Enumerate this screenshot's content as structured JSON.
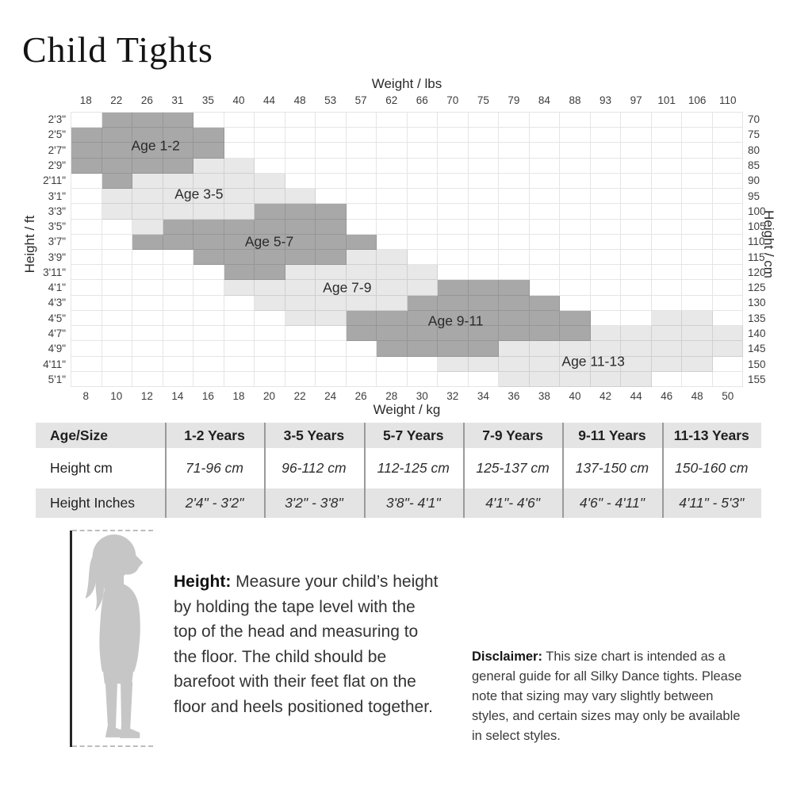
{
  "page": {
    "title": "Child Tights"
  },
  "chart_data": {
    "type": "heatmap",
    "title": "Child Tights size chart",
    "cols": 22,
    "top_axis": {
      "title": "Weight / lbs",
      "ticks": [
        "18",
        "22",
        "26",
        "31",
        "35",
        "40",
        "44",
        "48",
        "53",
        "57",
        "62",
        "66",
        "70",
        "75",
        "79",
        "84",
        "88",
        "93",
        "97",
        "101",
        "106",
        "110"
      ]
    },
    "bottom_axis": {
      "title": "Weight / kg",
      "ticks": [
        "8",
        "10",
        "12",
        "14",
        "16",
        "18",
        "20",
        "22",
        "24",
        "26",
        "28",
        "30",
        "32",
        "34",
        "36",
        "38",
        "40",
        "42",
        "44",
        "46",
        "48",
        "50"
      ]
    },
    "left_axis": {
      "title": "Height / ft"
    },
    "right_axis": {
      "title": "Height / cm"
    },
    "colors": {
      "dark_cell": "#a8a8a8",
      "light_cell": "#e8e8e8"
    },
    "rows": [
      {
        "ft": "2'3\"",
        "cm": "70",
        "dark": [
          [
            1,
            3
          ]
        ],
        "light": []
      },
      {
        "ft": "2'5\"",
        "cm": "75",
        "dark": [
          [
            0,
            4
          ]
        ],
        "light": []
      },
      {
        "ft": "2'7\"",
        "cm": "80",
        "dark": [
          [
            0,
            4
          ]
        ],
        "light": []
      },
      {
        "ft": "2'9\"",
        "cm": "85",
        "dark": [
          [
            0,
            3
          ]
        ],
        "light": [
          [
            4,
            5
          ]
        ]
      },
      {
        "ft": "2'11\"",
        "cm": "90",
        "dark": [
          [
            1,
            1
          ]
        ],
        "light": [
          [
            2,
            6
          ]
        ]
      },
      {
        "ft": "3'1\"",
        "cm": "95",
        "dark": [],
        "light": [
          [
            1,
            7
          ]
        ]
      },
      {
        "ft": "3'3\"",
        "cm": "100",
        "dark": [
          [
            6,
            8
          ]
        ],
        "light": [
          [
            1,
            5
          ]
        ]
      },
      {
        "ft": "3'5\"",
        "cm": "105",
        "dark": [
          [
            3,
            8
          ]
        ],
        "light": [
          [
            2,
            2
          ]
        ]
      },
      {
        "ft": "3'7\"",
        "cm": "110",
        "dark": [
          [
            2,
            9
          ]
        ],
        "light": []
      },
      {
        "ft": "3'9\"",
        "cm": "115",
        "dark": [
          [
            4,
            8
          ]
        ],
        "light": [
          [
            9,
            10
          ]
        ]
      },
      {
        "ft": "3'11\"",
        "cm": "120",
        "dark": [
          [
            5,
            6
          ]
        ],
        "light": [
          [
            7,
            11
          ]
        ]
      },
      {
        "ft": "4'1\"",
        "cm": "125",
        "dark": [
          [
            12,
            14
          ]
        ],
        "light": [
          [
            5,
            11
          ]
        ]
      },
      {
        "ft": "4'3\"",
        "cm": "130",
        "dark": [
          [
            11,
            15
          ]
        ],
        "light": [
          [
            6,
            10
          ]
        ]
      },
      {
        "ft": "4'5\"",
        "cm": "135",
        "dark": [
          [
            9,
            16
          ]
        ],
        "light": [
          [
            7,
            8
          ],
          [
            19,
            20
          ]
        ]
      },
      {
        "ft": "4'7\"",
        "cm": "140",
        "dark": [
          [
            9,
            16
          ]
        ],
        "light": [
          [
            17,
            21
          ]
        ]
      },
      {
        "ft": "4'9\"",
        "cm": "145",
        "dark": [
          [
            10,
            13
          ]
        ],
        "light": [
          [
            14,
            21
          ]
        ]
      },
      {
        "ft": "4'11\"",
        "cm": "150",
        "dark": [],
        "light": [
          [
            12,
            20
          ]
        ]
      },
      {
        "ft": "5'1\"",
        "cm": "155",
        "dark": [],
        "light": [
          [
            14,
            18
          ]
        ]
      }
    ],
    "regions": [
      {
        "label": "Age 1-2",
        "x": 2.78,
        "y": 2.25
      },
      {
        "label": "Age 3-5",
        "x": 4.2,
        "y": 5.4
      },
      {
        "label": "Age 5-7",
        "x": 6.5,
        "y": 8.5
      },
      {
        "label": "Age 7-9",
        "x": 9.05,
        "y": 11.5
      },
      {
        "label": "Age 9-11",
        "x": 12.6,
        "y": 13.7
      },
      {
        "label": "Age 11-13",
        "x": 17.1,
        "y": 16.35
      }
    ]
  },
  "table": {
    "header": [
      "Age/Size",
      "1-2 Years",
      "3-5 Years",
      "5-7 Years",
      "7-9 Years",
      "9-11 Years",
      "11-13 Years"
    ],
    "rows": [
      [
        "Height cm",
        "71-96 cm",
        "96-112 cm",
        "112-125 cm",
        "125-137 cm",
        "137-150 cm",
        "150-160 cm"
      ],
      [
        "Height Inches",
        "2'4\" - 3'2\"",
        "3'2\" - 3'8\"",
        "3'8\"- 4'1\"",
        "4'1\"- 4'6\"",
        "4'6\" - 4'11\"",
        "4'11\" - 5'3\""
      ]
    ]
  },
  "instructions": {
    "label": "Height:",
    "text": "Measure your child’s height by holding the tape level with the top of the head and measuring to the floor. The child should be barefoot with their feet flat on the floor and heels positioned together."
  },
  "disclaimer": {
    "label": "Disclaimer:",
    "text": "This size chart is intended as a general guide for all Silky Dance tights. Please note that sizing may vary slightly between styles, and certain sizes may only be available in select styles."
  }
}
